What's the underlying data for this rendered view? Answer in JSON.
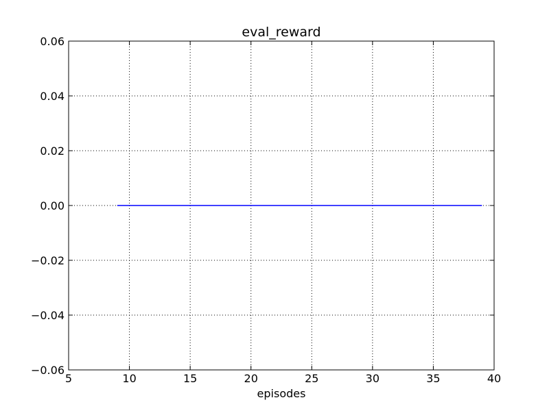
{
  "chart_data": {
    "type": "line",
    "title": "eval_reward",
    "xlabel": "episodes",
    "ylabel": "",
    "xlim": [
      5,
      40
    ],
    "ylim": [
      -0.06,
      0.06
    ],
    "x_ticks": [
      5,
      10,
      15,
      20,
      25,
      30,
      35,
      40
    ],
    "x_tick_labels": [
      "5",
      "10",
      "15",
      "20",
      "25",
      "30",
      "35",
      "40"
    ],
    "y_ticks": [
      -0.06,
      -0.04,
      -0.02,
      0.0,
      0.02,
      0.04,
      0.06
    ],
    "y_tick_labels": [
      "−0.06",
      "−0.04",
      "−0.02",
      "0.00",
      "0.02",
      "0.04",
      "0.06"
    ],
    "grid": true,
    "legend": "none",
    "series": [
      {
        "color": "#0000ff",
        "x": [
          9,
          14,
          19,
          24,
          29,
          34,
          39
        ],
        "y": [
          0,
          0,
          0,
          0,
          0,
          0,
          0
        ]
      }
    ]
  }
}
